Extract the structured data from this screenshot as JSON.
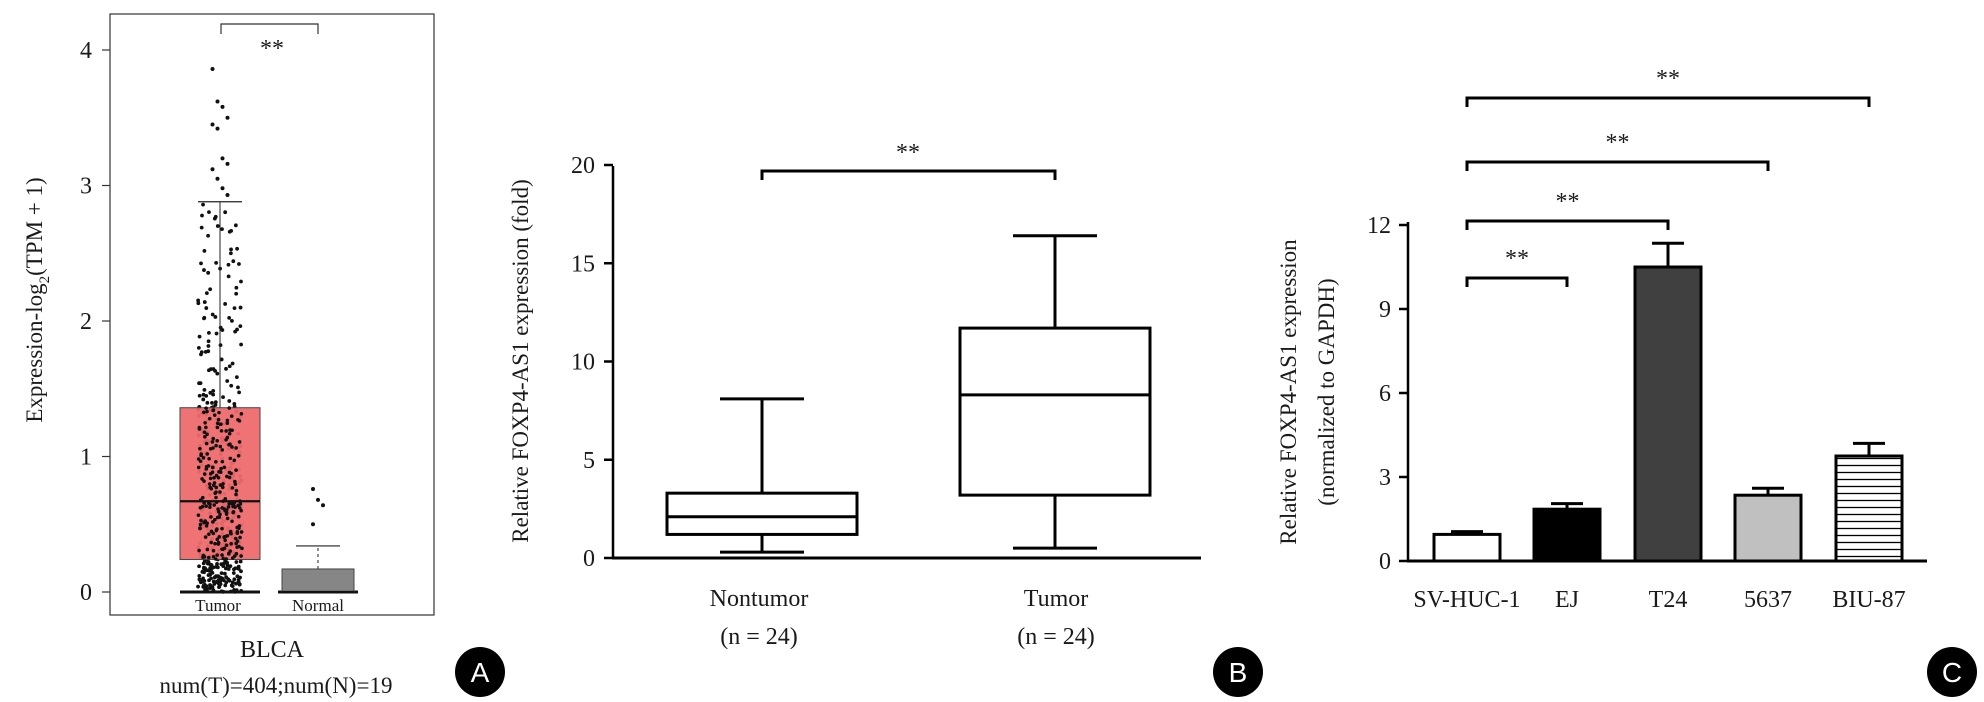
{
  "chart_data": [
    {
      "type": "box",
      "panel_label": "A",
      "ylabel_main": "Expression-log",
      "ylabel_sub": "2",
      "ylabel_tail": "(TPM + 1)",
      "ylim": [
        0,
        4.3
      ],
      "yticks": [
        0,
        1,
        2,
        3,
        4
      ],
      "categories": [
        "Tumor",
        "Normal"
      ],
      "xlabel": "BLCA",
      "caption": "num(T)=404;num(N)=19",
      "significance": "**",
      "boxes": [
        {
          "name": "Tumor",
          "q1": 0.24,
          "median": 0.67,
          "q3": 1.36,
          "whisker_low": 0.0,
          "whisker_high": 2.88,
          "color": "#ee6b6e"
        },
        {
          "name": "Normal",
          "q1": 0.0,
          "median": 0.0,
          "q3": 0.17,
          "whisker_low": 0.0,
          "whisker_high": 0.34,
          "color": "#7f7f7f"
        }
      ],
      "outliers": {
        "Tumor": [
          3.86,
          3.62,
          3.58,
          3.5,
          3.45,
          3.42,
          3.2,
          3.16,
          3.12,
          3.05,
          2.98,
          2.93
        ],
        "Normal": [
          0.76,
          0.68,
          0.64,
          0.5
        ]
      }
    },
    {
      "type": "box",
      "panel_label": "B",
      "ylabel": "Relative FOXP4-AS1 expression (fold)",
      "ylim": [
        0,
        20
      ],
      "yticks": [
        0,
        5,
        10,
        15,
        20
      ],
      "categories": [
        "Nontumor",
        "Tumor"
      ],
      "n_labels": [
        "(n = 24)",
        "(n = 24)"
      ],
      "significance": "**",
      "boxes": [
        {
          "name": "Nontumor",
          "min": 0.3,
          "q1": 1.2,
          "median": 2.1,
          "q3": 3.3,
          "max": 8.1
        },
        {
          "name": "Tumor",
          "min": 0.5,
          "q1": 3.2,
          "median": 8.3,
          "q3": 11.7,
          "max": 16.4
        }
      ]
    },
    {
      "type": "bar",
      "panel_label": "C",
      "ylabel_line1": "Relative FOXP4-AS1 expression",
      "ylabel_line2": "(normalized to GAPDH)",
      "ylim": [
        0,
        12
      ],
      "yticks": [
        0,
        3,
        6,
        9,
        12
      ],
      "categories": [
        "SV-HUC-1",
        "EJ",
        "T24",
        "5637",
        "BIU-87"
      ],
      "values": [
        0.95,
        1.85,
        10.5,
        2.35,
        3.75
      ],
      "errors": [
        0.1,
        0.2,
        0.85,
        0.25,
        0.45
      ],
      "fills": [
        "#ffffff",
        "#000000",
        "#404040",
        "#c0c0c0",
        "hatch"
      ],
      "comparisons": [
        {
          "from": "SV-HUC-1",
          "to": "EJ",
          "label": "**"
        },
        {
          "from": "SV-HUC-1",
          "to": "T24",
          "label": "**"
        },
        {
          "from": "SV-HUC-1",
          "to": "5637",
          "label": "**"
        },
        {
          "from": "SV-HUC-1",
          "to": "BIU-87",
          "label": "**"
        }
      ]
    }
  ]
}
